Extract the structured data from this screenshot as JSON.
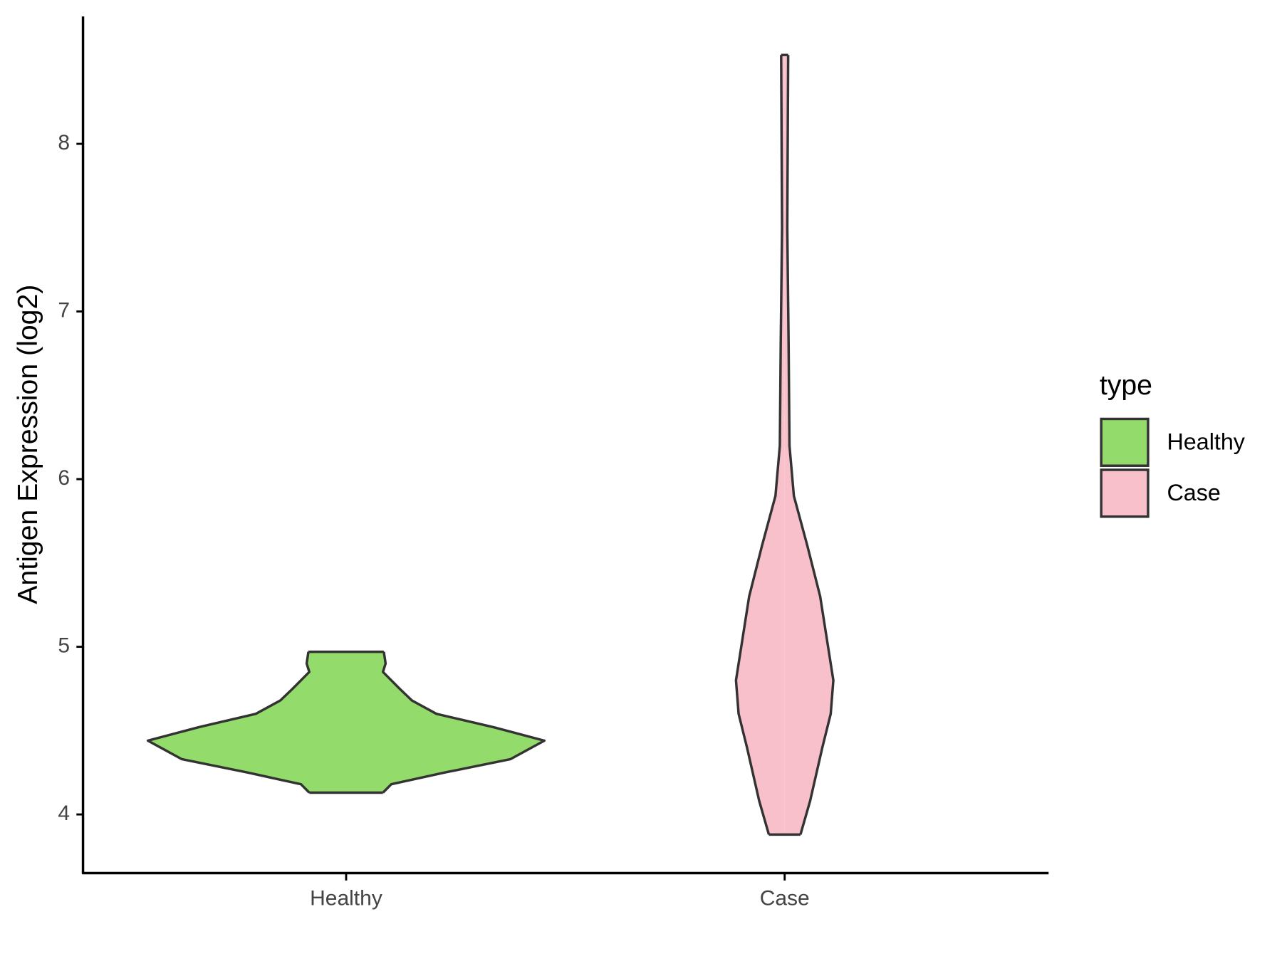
{
  "chart_data": {
    "type": "violin",
    "y_label": "Antigen Expression (log2)",
    "legend_title": "type",
    "categories": [
      "Healthy",
      "Case"
    ],
    "ylim": [
      3.65,
      8.76
    ],
    "yticks": [
      4,
      5,
      6,
      7,
      8
    ],
    "grid": false,
    "legend_position": "right",
    "series": [
      {
        "name": "Healthy",
        "color": "#93db6a",
        "y": [
          4.13,
          4.18,
          4.25,
          4.33,
          4.44,
          4.52,
          4.6,
          4.68,
          4.75,
          4.85,
          4.9,
          4.97
        ],
        "half_width": [
          0.084,
          0.103,
          0.225,
          0.375,
          0.452,
          0.337,
          0.206,
          0.15,
          0.122,
          0.084,
          0.09,
          0.086
        ]
      },
      {
        "name": "Case",
        "color": "#f8c0cb",
        "y": [
          3.88,
          4.08,
          4.4,
          4.6,
          4.8,
          5.0,
          5.3,
          5.6,
          5.9,
          6.2,
          6.8,
          7.5,
          8.53
        ],
        "half_width": [
          0.036,
          0.058,
          0.086,
          0.105,
          0.111,
          0.099,
          0.081,
          0.052,
          0.021,
          0.011,
          0.009,
          0.006,
          0.008
        ]
      }
    ]
  }
}
